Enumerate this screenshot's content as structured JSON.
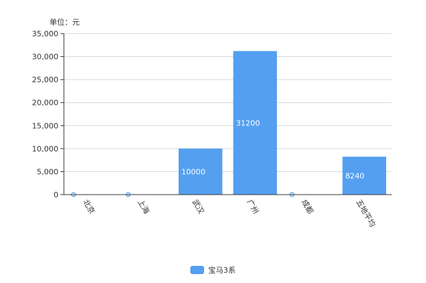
{
  "chart_data": {
    "type": "bar",
    "unit_label": "单位：元",
    "categories": [
      "北京",
      "上海",
      "武汉",
      "广州",
      "成都",
      "五地平均"
    ],
    "series": [
      {
        "name": "宝马3系",
        "values": [
          0,
          0,
          10000,
          31200,
          0,
          8240
        ],
        "color": "#549ff0"
      }
    ],
    "data_labels": [
      "0",
      "0",
      "10000",
      "31200",
      "0",
      "8240"
    ],
    "y_tick_labels": [
      "0",
      "5,000",
      "10,000",
      "15,000",
      "20,000",
      "25,000",
      "30,000",
      "35,000"
    ],
    "ylim": [
      0,
      35000
    ],
    "grid": true,
    "legend_position": "bottom"
  }
}
